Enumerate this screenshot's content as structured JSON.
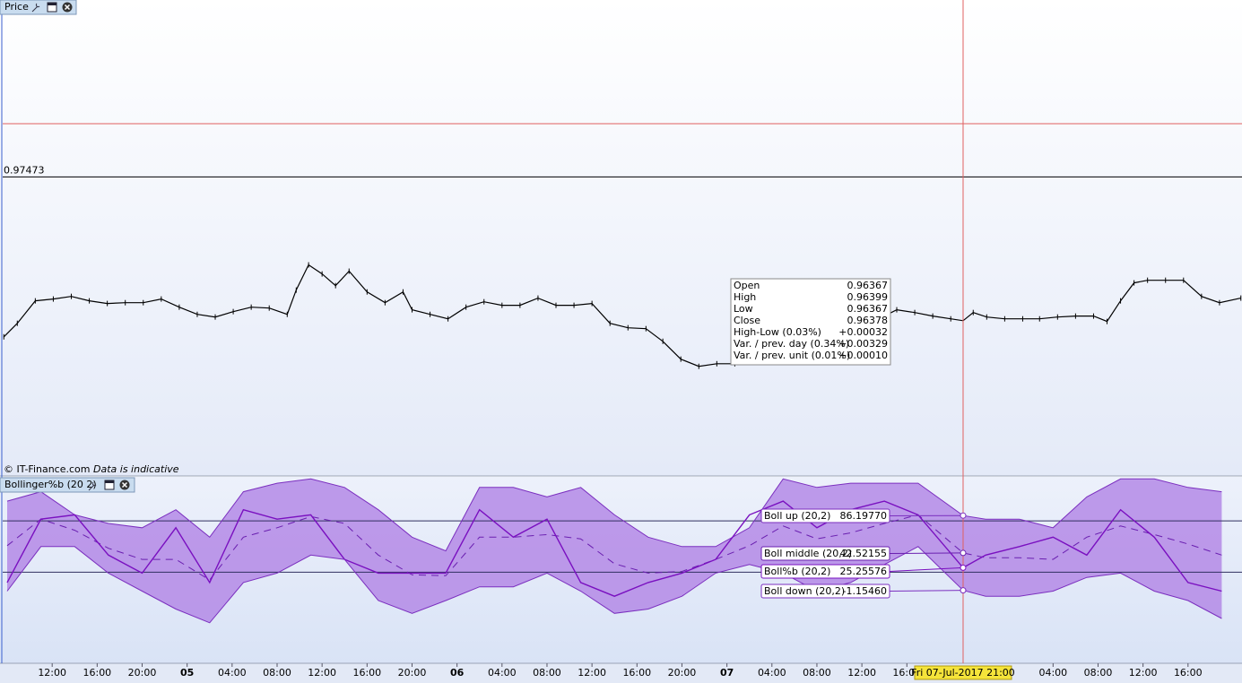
{
  "chart_data": [
    {
      "type": "line",
      "title": "Price",
      "x": [
        7.7,
        8.9,
        10.5,
        12.1,
        13.7,
        15.3,
        16.9,
        18.5,
        20.1,
        21.7,
        23.3,
        24.9,
        26.5,
        28.1,
        29.7,
        31.3,
        32.9,
        33.7,
        34.8,
        36.0,
        37.2,
        38.4,
        40.0,
        41.6,
        43.2,
        44.0,
        45.6,
        47.2,
        48.8,
        50.4,
        52.0,
        53.6,
        55.2,
        56.8,
        58.4,
        60.0,
        61.6,
        63.2,
        64.8,
        66.3,
        67.9,
        69.5,
        71.1,
        72.7,
        74.3,
        75.1,
        77.5,
        80.7,
        83.9,
        86.3,
        87.1,
        88.7,
        90.3,
        91.9,
        93,
        93.9,
        95.1,
        96.7,
        98.3,
        99.8,
        101.4,
        103.0,
        104.6,
        105.8,
        107.0,
        108.2,
        109.4,
        111.0,
        112.6,
        114.2,
        115.8,
        117.7
      ],
      "values": [
        0.96255,
        0.96358,
        0.96529,
        0.96543,
        0.96563,
        0.96529,
        0.96509,
        0.96515,
        0.96515,
        0.96543,
        0.96481,
        0.96426,
        0.96406,
        0.96447,
        0.96481,
        0.96474,
        0.96426,
        0.96611,
        0.96803,
        0.96734,
        0.96645,
        0.96755,
        0.96597,
        0.96515,
        0.96597,
        0.96461,
        0.96426,
        0.96392,
        0.96481,
        0.96522,
        0.96495,
        0.96495,
        0.9655,
        0.96495,
        0.96495,
        0.96509,
        0.96358,
        0.96324,
        0.96317,
        0.96221,
        0.96085,
        0.9603,
        0.9605,
        0.9605,
        0.96085,
        0.96119,
        0.96119,
        0.96187,
        0.9629,
        0.96426,
        0.96461,
        0.9644,
        0.96413,
        0.96392,
        0.96378,
        0.9644,
        0.96406,
        0.96392,
        0.96392,
        0.96392,
        0.96406,
        0.96413,
        0.96413,
        0.96372,
        0.96529,
        0.96666,
        0.96686,
        0.96686,
        0.96686,
        0.96563,
        0.96515,
        0.9655
      ],
      "color": "#000000",
      "xlim": [
        7.6,
        117.8
      ],
      "ylim": [
        0.95195,
        0.98821
      ],
      "reference_line": 0.97473,
      "tooltip": [
        {
          "label": "Open",
          "value": "0.96367",
          "color": "#000000"
        },
        {
          "label": "High",
          "value": "0.96399",
          "color": "#000000"
        },
        {
          "label": "Low",
          "value": "0.96367",
          "color": "#000000"
        },
        {
          "label": "Close",
          "value": "0.96378",
          "color": "#000000"
        },
        {
          "label": "High-Low (0.03%)",
          "value": "+0.00032",
          "color": "#000000"
        },
        {
          "label": "Var. / prev. day (0.34%)",
          "value": "+0.00329",
          "color": "#1a9a1a"
        },
        {
          "label": "Var. / prev. unit (0.01%)",
          "value": "+0.00010",
          "color": "#1a9a1a"
        }
      ],
      "footer": "© IT-Finance.com",
      "footer_note": "Data is indicative"
    },
    {
      "type": "line",
      "title": "Bollinger%b (20 2)",
      "x": [
        8,
        11,
        14,
        17,
        20,
        23,
        26,
        29,
        32,
        35,
        38,
        41,
        44,
        47,
        50,
        53,
        56,
        59,
        62,
        65,
        68,
        71,
        74,
        77,
        80,
        83,
        86,
        89,
        93,
        95,
        98,
        101,
        104,
        107,
        110,
        113,
        116
      ],
      "series": [
        {
          "name": "Boll up (20,2)",
          "color": "#7b2fbf",
          "values": [
            103,
            114,
            87,
            77,
            72,
            93,
            61,
            114,
            124,
            129,
            119,
            93,
            61,
            45,
            119,
            119,
            108,
            119,
            87,
            61,
            50,
            50,
            72,
            129,
            119,
            124,
            124,
            124,
            86.1977,
            82,
            82,
            72,
            108,
            129,
            129,
            119,
            114
          ]
        },
        {
          "name": "Boll middle (20,2)",
          "color": "#6a1fb0",
          "values": [
            51,
            82,
            69,
            48,
            35,
            35,
            11,
            61,
            72,
            85,
            77,
            40,
            17,
            16,
            61,
            61,
            64,
            59,
            30,
            19,
            21,
            35,
            51,
            74,
            59,
            66,
            77,
            87,
            42.52155,
            37,
            37,
            35,
            61,
            74,
            64,
            53,
            40
          ]
        },
        {
          "name": "Boll%b (20,2)",
          "color": "#7a10c0",
          "values": [
            8,
            82,
            87,
            40,
            19,
            72,
            8,
            93,
            82,
            87,
            35,
            19,
            19,
            19,
            93,
            61,
            82,
            8,
            -8,
            8,
            19,
            35,
            87,
            103,
            72,
            93,
            103,
            87,
            25.25576,
            40,
            50,
            61,
            40,
            93,
            61,
            8,
            -2
          ]
        },
        {
          "name": "Boll down (20,2)",
          "color": "#7b2fbf",
          "values": [
            -2,
            50,
            50,
            19,
            -2,
            -23,
            -39,
            8,
            19,
            40,
            35,
            -13,
            -28,
            -13,
            3,
            3,
            19,
            -2,
            -28,
            -23,
            -8,
            19,
            29,
            19,
            -2,
            8,
            29,
            50,
            -1.1546,
            -8,
            -8,
            -2,
            14,
            19,
            -2,
            -13,
            -34
          ]
        }
      ],
      "readout": [
        "86.19770",
        "42.52155",
        "25.25576",
        "-1.15460"
      ],
      "band_color": "#b48ae6",
      "levels": [
        20,
        80
      ],
      "xlim": [
        7.6,
        117.8
      ],
      "ylim": [
        -86.3,
        131.4
      ],
      "xticks": [
        {
          "value": 12,
          "label": "12:00"
        },
        {
          "value": 16,
          "label": "16:00"
        },
        {
          "value": 20,
          "label": "20:00"
        },
        {
          "value": 24,
          "label": "05"
        },
        {
          "value": 28,
          "label": "04:00"
        },
        {
          "value": 32,
          "label": "08:00"
        },
        {
          "value": 36,
          "label": "12:00"
        },
        {
          "value": 40,
          "label": "16:00"
        },
        {
          "value": 44,
          "label": "20:00"
        },
        {
          "value": 48,
          "label": "06"
        },
        {
          "value": 52,
          "label": "04:00"
        },
        {
          "value": 56,
          "label": "08:00"
        },
        {
          "value": 60,
          "label": "12:00"
        },
        {
          "value": 64,
          "label": "16:00"
        },
        {
          "value": 68,
          "label": "20:00"
        },
        {
          "value": 72,
          "label": "07"
        },
        {
          "value": 76,
          "label": "04:00"
        },
        {
          "value": 80,
          "label": "08:00"
        },
        {
          "value": 84,
          "label": "12:00"
        },
        {
          "value": 88,
          "label": "16:00"
        },
        {
          "value": 101,
          "label": "04:00"
        },
        {
          "value": 105,
          "label": "08:00"
        },
        {
          "value": 109,
          "label": "12:00"
        },
        {
          "value": 113,
          "label": "16:00"
        }
      ],
      "crosshair": {
        "value": 93,
        "label": "Fri 07-Jul-2017 21:00"
      }
    }
  ]
}
